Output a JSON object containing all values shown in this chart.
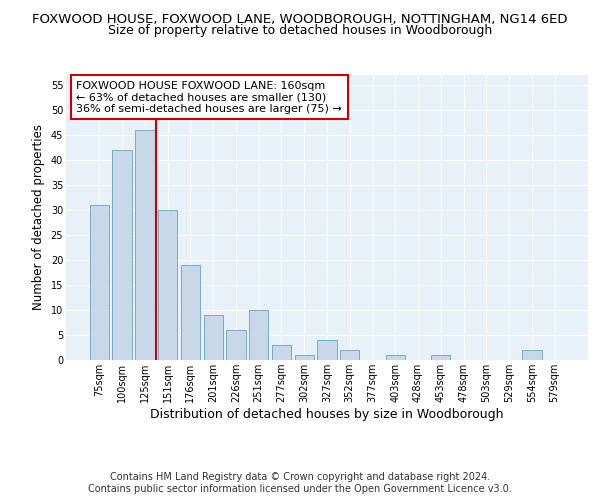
{
  "title": "FOXWOOD HOUSE, FOXWOOD LANE, WOODBOROUGH, NOTTINGHAM, NG14 6ED",
  "subtitle": "Size of property relative to detached houses in Woodborough",
  "xlabel": "Distribution of detached houses by size in Woodborough",
  "ylabel": "Number of detached properties",
  "categories": [
    "75sqm",
    "100sqm",
    "125sqm",
    "151sqm",
    "176sqm",
    "201sqm",
    "226sqm",
    "251sqm",
    "277sqm",
    "302sqm",
    "327sqm",
    "352sqm",
    "377sqm",
    "403sqm",
    "428sqm",
    "453sqm",
    "478sqm",
    "503sqm",
    "529sqm",
    "554sqm",
    "579sqm"
  ],
  "values": [
    31,
    42,
    46,
    30,
    19,
    9,
    6,
    10,
    3,
    1,
    4,
    2,
    0,
    1,
    0,
    1,
    0,
    0,
    0,
    2,
    0
  ],
  "bar_color": "#c8d8e8",
  "bar_edge_color": "#7aaac8",
  "vline_index": 3,
  "vline_color": "#cc0000",
  "annotation_text": "FOXWOOD HOUSE FOXWOOD LANE: 160sqm\n← 63% of detached houses are smaller (130)\n36% of semi-detached houses are larger (75) →",
  "annotation_box_edge": "#cc0000",
  "ylim": [
    0,
    57
  ],
  "yticks": [
    0,
    5,
    10,
    15,
    20,
    25,
    30,
    35,
    40,
    45,
    50,
    55
  ],
  "footer_line1": "Contains HM Land Registry data © Crown copyright and database right 2024.",
  "footer_line2": "Contains public sector information licensed under the Open Government Licence v3.0.",
  "background_color": "#ffffff",
  "plot_bg_color": "#e8f0f8",
  "grid_color": "#ffffff",
  "title_fontsize": 9.5,
  "subtitle_fontsize": 9,
  "xlabel_fontsize": 9,
  "ylabel_fontsize": 8.5,
  "tick_fontsize": 7,
  "annot_fontsize": 8,
  "footer_fontsize": 7
}
